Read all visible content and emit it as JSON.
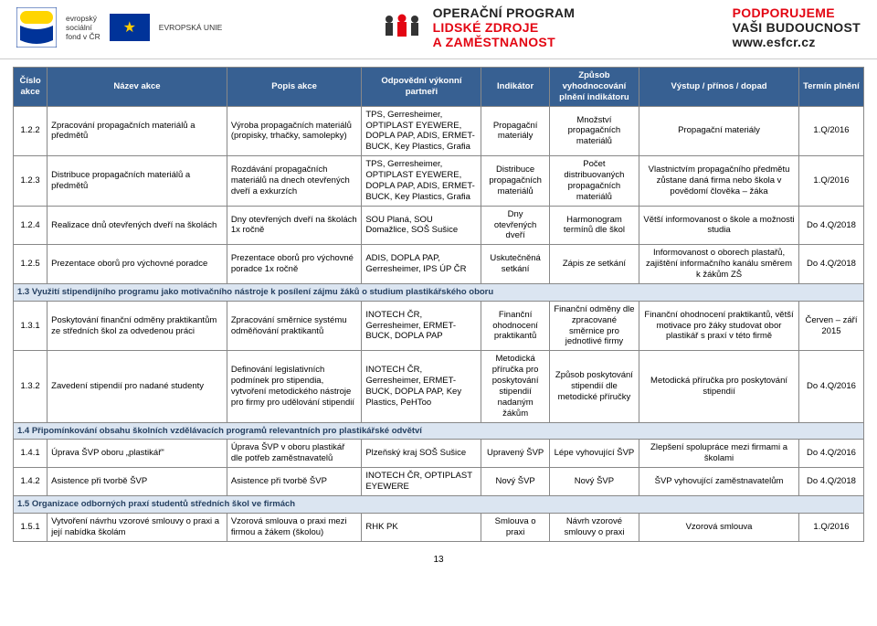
{
  "banner": {
    "esf_lines": [
      "evropský",
      "sociální",
      "fond v ČR"
    ],
    "eu_label": "EVROPSKÁ UNIE",
    "op_line1": "OPERAČNÍ PROGRAM",
    "op_line2": "LIDSKÉ ZDROJE",
    "op_line3": "A ZAMĚSTNANOST",
    "support_line1": "PODPORUJEME",
    "support_line2": "VAŠI BUDOUCNOST",
    "support_url": "www.esfcr.cz"
  },
  "colors": {
    "table_header_bg": "#376092",
    "table_header_fg": "#ffffff",
    "section_bg": "#dbe5f1",
    "section_fg": "#254061",
    "border": "#888888",
    "red": "#e30613",
    "eu_blue": "#003399",
    "eu_gold": "#ffcc00"
  },
  "headers": {
    "c1": "Číslo akce",
    "c2": "Název akce",
    "c3": "Popis akce",
    "c4": "Odpovědní výkonní partneři",
    "c5": "Indikátor",
    "c6": "Způsob vyhodnocování plnění indikátoru",
    "c7": "Výstup / přínos / dopad",
    "c8": "Termín plnění"
  },
  "rows": [
    {
      "type": "data",
      "c1": "1.2.2",
      "c2": "Zpracování propagačních materiálů a předmětů",
      "c3": "Výroba propagačních materiálů (propisky, trhačky, samolepky)",
      "c4": "TPS, Gerresheimer, OPTIPLAST EYEWERE, DOPLA PAP, ADIS, ERMET-BUCK, Key Plastics, Grafia",
      "c5": "Propagační materiály",
      "c6": "Množství propagačních materiálů",
      "c7": "Propagační materiály",
      "c8": "1.Q/2016"
    },
    {
      "type": "data",
      "c1": "1.2.3",
      "c2": "Distribuce propagačních materiálů a předmětů",
      "c3": "Rozdávání propagačních materiálů na dnech otevřených dveří a exkurzích",
      "c4": "TPS, Gerresheimer, OPTIPLAST EYEWERE, DOPLA PAP, ADIS, ERMET-BUCK, Key Plastics, Grafia",
      "c5": "Distribuce propagačních materiálů",
      "c6": "Počet distribuovaných propagačních materiálů",
      "c7": "Vlastnictvím propagačního předmětu zůstane daná firma nebo škola v povědomí člověka – žáka",
      "c8": "1.Q/2016"
    },
    {
      "type": "data",
      "c1": "1.2.4",
      "c2": "Realizace dnů otevřených dveří na školách",
      "c3": "Dny otevřených dveří na školách 1x ročně",
      "c4": "SOU Planá, SOU Domažlice, SOŠ Sušice",
      "c5": "Dny otevřených dveří",
      "c6": "Harmonogram termínů dle škol",
      "c7": "Větší informovanost o škole a možnosti studia",
      "c8": "Do 4.Q/2018"
    },
    {
      "type": "data",
      "c1": "1.2.5",
      "c2": "Prezentace oborů pro výchovné poradce",
      "c3": "Prezentace oborů pro výchovné poradce 1x ročně",
      "c4": "ADIS, DOPLA PAP, Gerresheimer, IPS ÚP ČR",
      "c5": "Uskutečněná setkání",
      "c6": "Zápis ze setkání",
      "c7": "Informovanost o oborech plastařů, zajištění informačního kanálu směrem k žákům ZŠ",
      "c8": "Do 4.Q/2018"
    },
    {
      "type": "section",
      "text": "1.3 Využití stipendijního programu jako motivačního nástroje k posílení zájmu žáků o studium plastikářského oboru"
    },
    {
      "type": "data",
      "c1": "1.3.1",
      "c2": "Poskytování finanční odměny praktikantům ze středních škol za odvedenou práci",
      "c3": "Zpracování směrnice systému odměňování praktikantů",
      "c4": "INOTECH ČR, Gerresheimer, ERMET-BUCK, DOPLA PAP",
      "c5": "Finanční ohodnocení praktikantů",
      "c6": "Finanční odměny dle zpracované směrnice pro jednotlivé firmy",
      "c7": "Finanční ohodnocení praktikantů, větší motivace pro žáky studovat obor plastikář s praxí v této firmě",
      "c8": "Červen – září 2015"
    },
    {
      "type": "data",
      "c1": "1.3.2",
      "c2": "Zavedení stipendií pro nadané studenty",
      "c3": "Definování legislativních podmínek pro stipendia, vytvoření metodického nástroje pro firmy pro udělování stipendií",
      "c4": "INOTECH ČR, Gerresheimer, ERMET-BUCK, DOPLA PAP, Key Plastics, PeHToo",
      "c5": "Metodická příručka pro poskytování stipendií nadaným žákům",
      "c6": "Způsob poskytování stipendií dle metodické příručky",
      "c7": "Metodická příručka pro poskytování stipendií",
      "c8": "Do 4.Q/2016"
    },
    {
      "type": "section",
      "text": "1.4 Připomínkování obsahu školních vzdělávacích programů relevantních pro plastikářské odvětví"
    },
    {
      "type": "data",
      "c1": "1.4.1",
      "c2": "Úprava ŠVP oboru „plastikář\"",
      "c3": "Úprava ŠVP v oboru plastikář dle potřeb zaměstnavatelů",
      "c4": "Plzeňský kraj SOŠ Sušice",
      "c5": "Upravený ŠVP",
      "c6": "Lépe vyhovující ŠVP",
      "c7": "Zlepšení spolupráce mezi firmami a školami",
      "c8": "Do 4.Q/2016"
    },
    {
      "type": "data",
      "c1": "1.4.2",
      "c2": "Asistence při tvorbě ŠVP",
      "c3": "Asistence při tvorbě ŠVP",
      "c4": "INOTECH ČR, OPTIPLAST EYEWERE",
      "c5": "Nový ŠVP",
      "c6": "Nový ŠVP",
      "c7": "ŠVP vyhovující zaměstnavatelům",
      "c8": "Do 4.Q/2018"
    },
    {
      "type": "section",
      "text": "1.5 Organizace odborných praxí studentů středních škol ve firmách"
    },
    {
      "type": "data",
      "c1": "1.5.1",
      "c2": "Vytvoření návrhu vzorové smlouvy o praxi a její nabídka školám",
      "c3": "Vzorová smlouva o praxi mezi firmou a žákem (školou)",
      "c4": "RHK PK",
      "c5": "Smlouva o praxi",
      "c6": "Návrh vzorové smlouvy o praxi",
      "c7": "Vzorová smlouva",
      "c8": "1.Q/2016"
    }
  ],
  "page_number": "13"
}
